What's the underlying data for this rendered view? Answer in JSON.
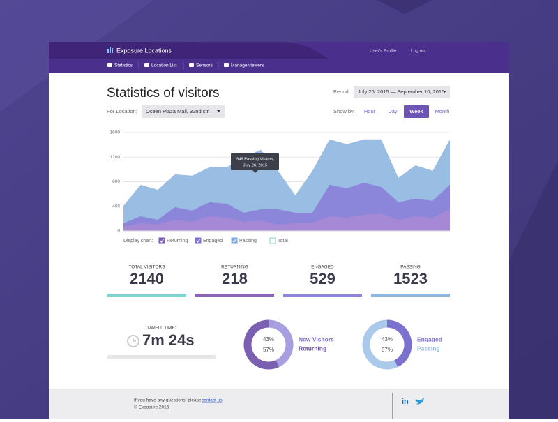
{
  "header": {
    "brand": "Exposure Locations",
    "nav": [
      "Statistics",
      "Location List",
      "Sensors",
      "Manage viewers"
    ],
    "user_links": [
      "User's Profile",
      "Log out"
    ]
  },
  "title": "Statistics of visitors",
  "period": {
    "label": "Period:",
    "value": "July 26, 2015 — September 10, 2015"
  },
  "location": {
    "label": "For Location:",
    "value": "Ocean Plaza Mall, 32nd str."
  },
  "show_by": {
    "label": "Show by:",
    "options": [
      "Hour",
      "Day",
      "Week",
      "Month"
    ],
    "selected": 2
  },
  "chart_data": {
    "type": "area",
    "categories": [
      null,
      null,
      null,
      null,
      null,
      null,
      null,
      null,
      null,
      null,
      null,
      null,
      null,
      null,
      null,
      null,
      null,
      null,
      null,
      null
    ],
    "series": [
      {
        "name": "Passing",
        "color": "#8fb6e0",
        "values": [
          409,
          750,
          670,
          920,
          898,
          1034,
          1034,
          1205,
          1318,
          977,
          580,
          977,
          1489,
          1411,
          1489,
          1489,
          864,
          1068,
          977,
          1489
        ]
      },
      {
        "name": "Engaged",
        "color": "#8a7fd8",
        "values": [
          125,
          239,
          182,
          386,
          330,
          466,
          443,
          295,
          352,
          352,
          295,
          295,
          750,
          693,
          784,
          716,
          466,
          523,
          489,
          750
        ]
      },
      {
        "name": "Returning",
        "color": "#a78ad6",
        "values": [
          68,
          125,
          102,
          182,
          148,
          239,
          216,
          148,
          170,
          102,
          125,
          125,
          239,
          216,
          261,
          284,
          182,
          239,
          216,
          352
        ]
      }
    ],
    "ylim": [
      0,
      1600
    ],
    "yticks": [
      0,
      400,
      800,
      1200,
      1600
    ],
    "grid": true,
    "tooltip": [
      "948 Passing Visitors,",
      "July 26, 2015"
    ],
    "legend_label": "Display chart:",
    "legend": [
      {
        "name": "Returning",
        "checked": true,
        "color": "#7b5fb8"
      },
      {
        "name": "Engaged",
        "checked": true,
        "color": "#7b72d0"
      },
      {
        "name": "Passing",
        "checked": true,
        "color": "#7fa8dc"
      },
      {
        "name": "Total",
        "checked": false,
        "color": "#7fd0cc"
      }
    ]
  },
  "stats": [
    {
      "label": "TOTAL VISITORS",
      "value": "2140",
      "color": "#7fd3cd"
    },
    {
      "label": "RETURNING",
      "value": "218",
      "color": "#8a64b8"
    },
    {
      "label": "ENGAGED",
      "value": "529",
      "color": "#8f86dc"
    },
    {
      "label": "PASSING",
      "value": "1523",
      "color": "#8fb6e0"
    }
  ],
  "dwell": {
    "label": "DWELL TIME:",
    "value": "7m 24s"
  },
  "donuts": [
    {
      "values": [
        43,
        57
      ],
      "value_labels": [
        "43%",
        "57%"
      ],
      "names": [
        "New Visitors",
        "Returning"
      ],
      "colors": [
        "#a89fe2",
        "#7b5fb0"
      ]
    },
    {
      "values": [
        43,
        57
      ],
      "value_labels": [
        "43%",
        "57%"
      ],
      "names": [
        "Engaged",
        "Passing"
      ],
      "colors": [
        "#7b72d0",
        "#abc9ea"
      ]
    }
  ],
  "footer": {
    "text": "If you have any questions, please",
    "link": "contact us",
    "copyright": "© Exposure 2016"
  }
}
